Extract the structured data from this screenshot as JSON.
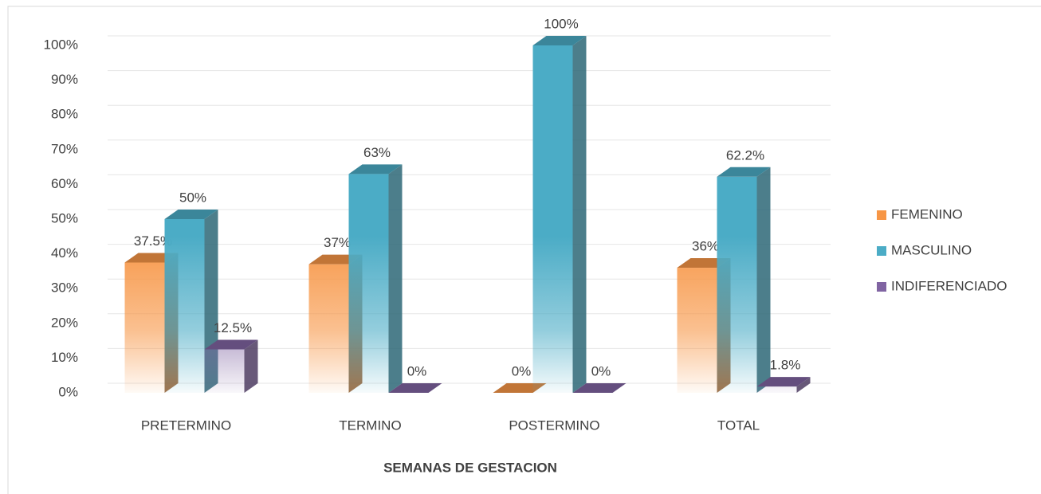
{
  "chart_data": {
    "type": "bar",
    "x_label": "SEMANAS DE GESTACION",
    "categories": [
      "PRETERMINO",
      "TERMINO",
      "POSTERMINO",
      "TOTAL"
    ],
    "series": [
      {
        "name": "FEMENINO",
        "color": "#f79646",
        "values": [
          37.5,
          37,
          0,
          36
        ],
        "value_labels": [
          "37.5%",
          "37%",
          "0%",
          "36%"
        ]
      },
      {
        "name": "MASCULINO",
        "color": "#4bacc6",
        "values": [
          50,
          63,
          100,
          62.2
        ],
        "value_labels": [
          "50%",
          "63%",
          "100%",
          "62.2%"
        ]
      },
      {
        "name": "INDIFERENCIADO",
        "color": "#8064a2",
        "values": [
          12.5,
          0,
          0,
          1.8
        ],
        "value_labels": [
          "12.5%",
          "0%",
          "0%",
          "1.8%"
        ]
      }
    ],
    "ylim": [
      0,
      100
    ],
    "yticks": [
      {
        "value": 0,
        "label": "0%"
      },
      {
        "value": 10,
        "label": "10%"
      },
      {
        "value": 20,
        "label": "20%"
      },
      {
        "value": 30,
        "label": "30%"
      },
      {
        "value": 40,
        "label": "40%"
      },
      {
        "value": 50,
        "label": "50%"
      },
      {
        "value": 60,
        "label": "60%"
      },
      {
        "value": 70,
        "label": "70%"
      },
      {
        "value": 80,
        "label": "80%"
      },
      {
        "value": 90,
        "label": "90%"
      },
      {
        "value": 100,
        "label": "100%"
      }
    ],
    "grid": true,
    "legend": "right"
  }
}
